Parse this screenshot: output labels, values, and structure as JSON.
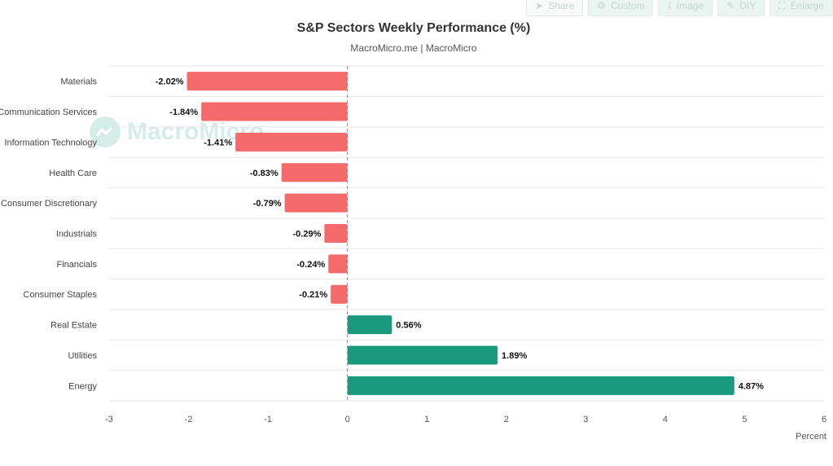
{
  "toolbar": {
    "share_label": "Share",
    "custom_label": "Custom",
    "image_label": "Image",
    "diy_label": "DIY",
    "enlarge_label": "Enlarge"
  },
  "watermark_text": "MacroMicro",
  "colors": {
    "negative": "#f56a6a",
    "positive": "#1a9a7c"
  },
  "chart_data": {
    "type": "bar",
    "orientation": "horizontal",
    "title": "S&P Sectors Weekly Performance (%)",
    "subtitle": "MacroMicro.me | MacroMicro",
    "xlabel": "Percent",
    "ylabel": "",
    "xlim": [
      -3,
      6
    ],
    "ticks": [
      -3,
      -2,
      -1,
      0,
      1,
      2,
      3,
      4,
      5,
      6
    ],
    "grid": true,
    "categories": [
      "Materials",
      "Communication Services",
      "Information Technology",
      "Health Care",
      "Consumer Discretionary",
      "Industrials",
      "Financials",
      "Consumer Staples",
      "Real Estate",
      "Utilities",
      "Energy"
    ],
    "values": [
      -2.02,
      -1.84,
      -1.41,
      -0.83,
      -0.79,
      -0.29,
      -0.24,
      -0.21,
      0.56,
      1.89,
      4.87
    ],
    "data_labels": [
      "-2.02%",
      "-1.84%",
      "-1.41%",
      "-0.83%",
      "-0.79%",
      "-0.29%",
      "-0.24%",
      "-0.21%",
      "0.56%",
      "1.89%",
      "4.87%"
    ]
  }
}
